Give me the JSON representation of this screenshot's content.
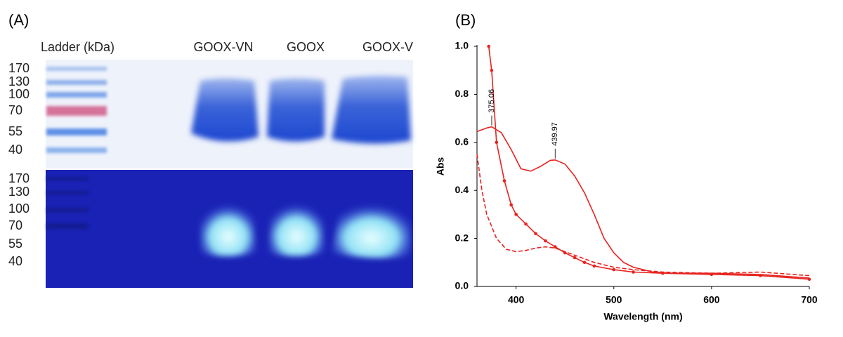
{
  "gel": {
    "panel_label": "(A)",
    "ladder_title": "Ladder (kDa)",
    "lanes": [
      "GOOX-VN",
      "GOOX",
      "GOOX-V"
    ],
    "markers": [
      170,
      130,
      100,
      70,
      55,
      40
    ]
  },
  "chart_data": {
    "type": "line",
    "panel_label": "(B)",
    "x_label": "Wavelength (nm)",
    "y_label": "Abs",
    "xlim": [
      360,
      700
    ],
    "xticks": [
      400,
      500,
      600,
      700
    ],
    "ylim": [
      0,
      1.0
    ],
    "yticks": [
      {
        "value": 0,
        "label": "0.0"
      },
      0.2,
      0.4,
      0.6,
      0.8,
      {
        "value": 1,
        "label": "1.0"
      }
    ],
    "series": [
      {
        "color": "#e8231f",
        "dash": "solid",
        "marker": false,
        "x": [
          360,
          370,
          375,
          385,
          395,
          405,
          415,
          425,
          435,
          440,
          450,
          460,
          470,
          480,
          490,
          500,
          510,
          520,
          540,
          560,
          600,
          650,
          700
        ],
        "values": [
          0.645,
          0.66,
          0.665,
          0.64,
          0.57,
          0.49,
          0.48,
          0.5,
          0.525,
          0.527,
          0.51,
          0.46,
          0.39,
          0.3,
          0.2,
          0.14,
          0.1,
          0.08,
          0.06,
          0.055,
          0.055,
          0.05,
          0.035
        ]
      },
      {
        "color": "#e8231f",
        "dash": "dashed",
        "marker": false,
        "x": [
          360,
          365,
          370,
          380,
          390,
          400,
          410,
          420,
          430,
          440,
          460,
          480,
          500,
          520,
          550,
          600,
          650,
          700
        ],
        "values": [
          0.55,
          0.4,
          0.3,
          0.2,
          0.155,
          0.145,
          0.15,
          0.16,
          0.165,
          0.16,
          0.13,
          0.1,
          0.08,
          0.07,
          0.06,
          0.055,
          0.06,
          0.045
        ]
      },
      {
        "color": "#e8231f",
        "dash": "solid",
        "marker": true,
        "x": [
          372,
          375,
          380,
          388,
          395,
          400,
          410,
          420,
          430,
          440,
          450,
          460,
          470,
          480,
          500,
          520,
          550,
          600,
          650,
          700
        ],
        "values": [
          1.0,
          0.9,
          0.6,
          0.44,
          0.34,
          0.3,
          0.26,
          0.22,
          0.19,
          0.165,
          0.14,
          0.12,
          0.1,
          0.085,
          0.07,
          0.06,
          0.055,
          0.05,
          0.045,
          0.03
        ]
      }
    ],
    "annotations": [
      {
        "x": 375.06,
        "y": 0.665
      },
      {
        "x": 439.97,
        "y": 0.527
      }
    ]
  }
}
